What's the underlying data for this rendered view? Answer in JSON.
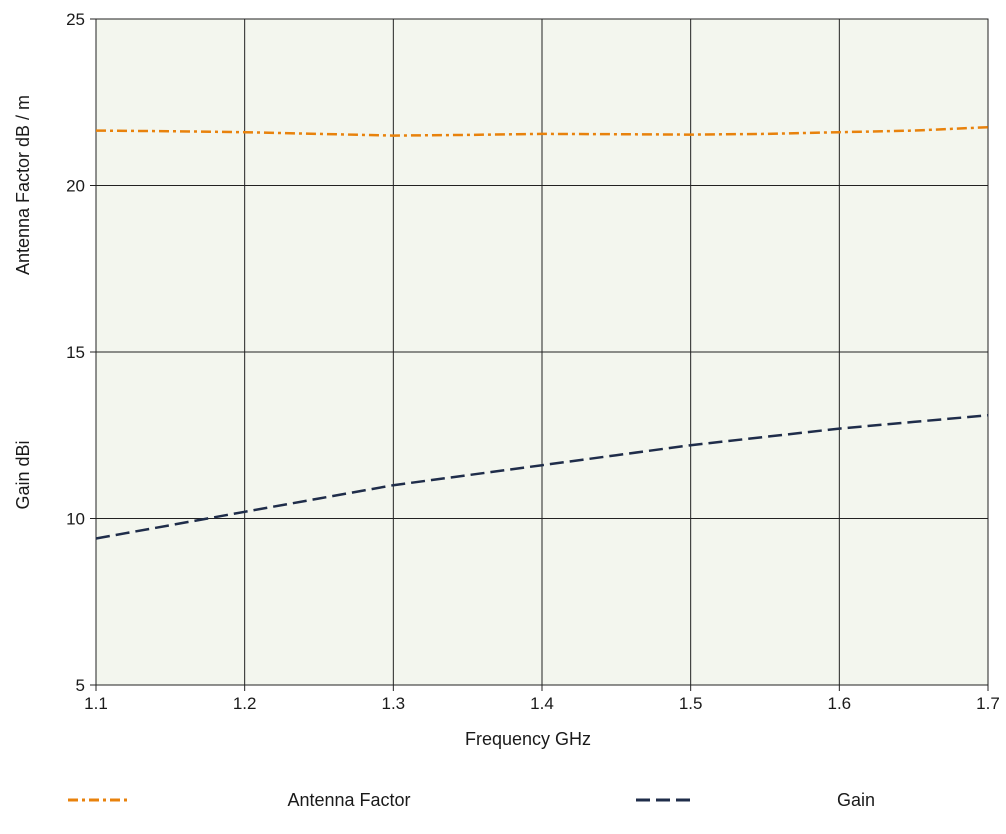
{
  "chart_data": {
    "type": "line",
    "xlabel": "Frequency GHz",
    "ylabel_upper": "Antenna Factor   dB / m",
    "ylabel_lower": "Gain dBi",
    "xlim": [
      1.1,
      1.7
    ],
    "ylim": [
      5,
      25
    ],
    "x_ticks": [
      "1.1",
      "1.2",
      "1.3",
      "1.4",
      "1.5",
      "1.6",
      "1.7"
    ],
    "y_ticks": [
      "5",
      "10",
      "15",
      "20",
      "25"
    ],
    "grid": true,
    "plot_background": "#f3f6ee",
    "legend_position": "bottom",
    "series": [
      {
        "name": "Antenna Factor",
        "color": "#e8820c",
        "style": "dash-dot",
        "x": [
          1.1,
          1.15,
          1.2,
          1.25,
          1.3,
          1.35,
          1.4,
          1.45,
          1.5,
          1.55,
          1.6,
          1.65,
          1.7
        ],
        "y": [
          21.65,
          21.63,
          21.6,
          21.55,
          21.5,
          21.52,
          21.55,
          21.54,
          21.53,
          21.55,
          21.6,
          21.65,
          21.75
        ]
      },
      {
        "name": "Gain",
        "color": "#1f2d4a",
        "style": "dashed",
        "x": [
          1.1,
          1.15,
          1.2,
          1.25,
          1.3,
          1.35,
          1.4,
          1.45,
          1.5,
          1.55,
          1.6,
          1.65,
          1.7
        ],
        "y": [
          9.4,
          9.8,
          10.2,
          10.6,
          11.0,
          11.3,
          11.6,
          11.9,
          12.2,
          12.45,
          12.7,
          12.9,
          13.1
        ]
      }
    ]
  }
}
